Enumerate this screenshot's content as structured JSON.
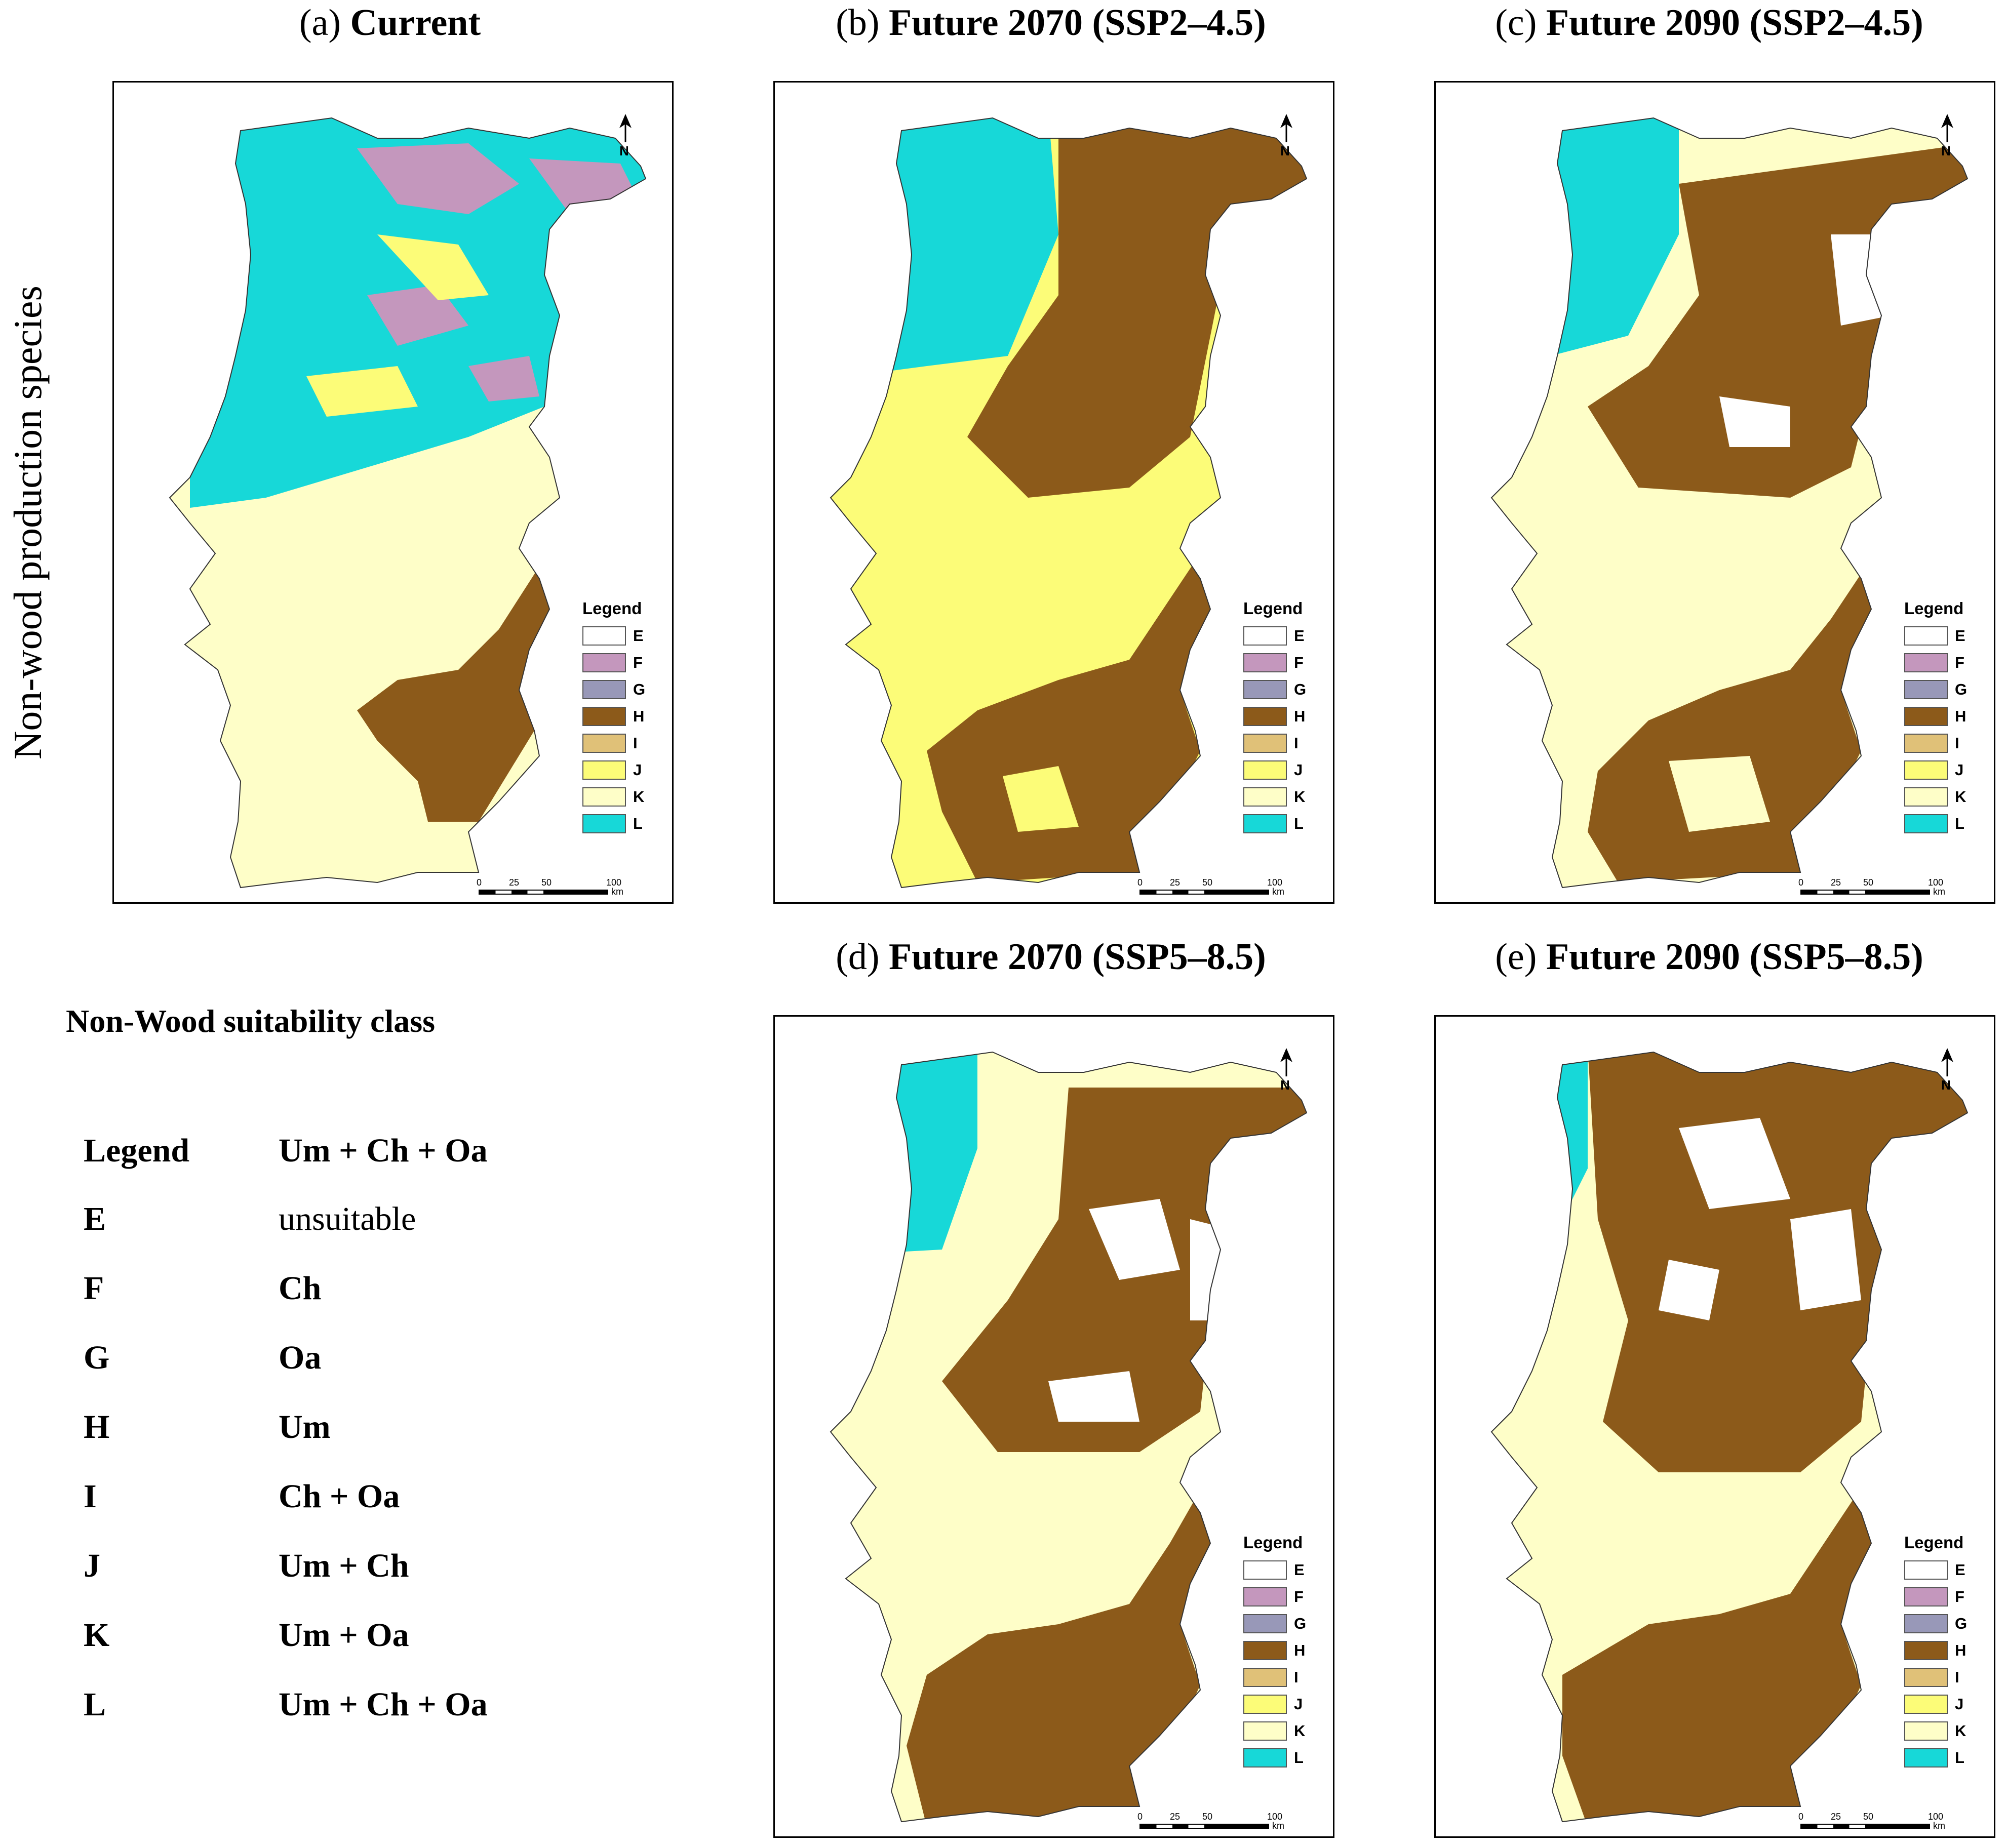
{
  "side_title": "Non-wood production species",
  "panels": [
    {
      "id": "a",
      "label": "(a)",
      "title": "Current",
      "bold_tail": "Current"
    },
    {
      "id": "b",
      "label": "(b)",
      "title": "Future 2070 (SSP2–4.5)"
    },
    {
      "id": "c",
      "label": "(c)",
      "title": "Future 2090 (SSP2–4.5)"
    },
    {
      "id": "d",
      "label": "(d)",
      "title": "Future 2070 (SSP5–8.5)"
    },
    {
      "id": "e",
      "label": "(e)",
      "title": "Future 2090 (SSP5–8.5)"
    }
  ],
  "map_legend": {
    "title": "Legend",
    "classes": [
      {
        "code": "E",
        "color": "#ffffff"
      },
      {
        "code": "F",
        "color": "#c497bd"
      },
      {
        "code": "G",
        "color": "#9898b8"
      },
      {
        "code": "H",
        "color": "#8c5a1a"
      },
      {
        "code": "I",
        "color": "#e0c178"
      },
      {
        "code": "J",
        "color": "#fcfc78"
      },
      {
        "code": "K",
        "color": "#fefec8"
      },
      {
        "code": "L",
        "color": "#17d8d8"
      }
    ]
  },
  "scalebar": {
    "ticks": [
      "0",
      "25",
      "50",
      "100"
    ],
    "unit": "km"
  },
  "north_label": "N",
  "class_table": {
    "heading": "Non-Wood suitability class",
    "header": {
      "code": "Legend",
      "meaning": "Um + Ch + Oa"
    },
    "rows": [
      {
        "code": "E",
        "meaning": "unsuitable"
      },
      {
        "code": "F",
        "meaning": "Ch"
      },
      {
        "code": "G",
        "meaning": "Oa"
      },
      {
        "code": "H",
        "meaning": "Um"
      },
      {
        "code": "I",
        "meaning": "Ch + Oa"
      },
      {
        "code": "J",
        "meaning": "Um + Ch"
      },
      {
        "code": "K",
        "meaning": "Um + Oa"
      },
      {
        "code": "L",
        "meaning": "Um + Ch + Oa"
      }
    ]
  },
  "map_colors": {
    "a": {
      "north": "#17d8d8",
      "north_accent": "#c497bd",
      "center": "#fefec8",
      "south": "#8c5a1a",
      "south_base": "#fefec8"
    },
    "b": {
      "north": "#17d8d8",
      "north_accent": "#8c5a1a",
      "center": "#fcfc78",
      "south": "#8c5a1a",
      "south_base": "#fcfc78"
    },
    "c": {
      "north": "#17d8d8",
      "north_accent": "#8c5a1a",
      "center": "#fefec8",
      "south": "#8c5a1a",
      "south_base": "#fefec8"
    },
    "d": {
      "north": "#17d8d8",
      "north_accent": "#8c5a1a",
      "center": "#fefec8",
      "south": "#8c5a1a",
      "south_base": "#fefec8"
    },
    "e": {
      "north": "#17d8d8",
      "north_accent": "#8c5a1a",
      "center": "#fefec8",
      "south": "#8c5a1a",
      "south_base": "#fefec8"
    }
  }
}
